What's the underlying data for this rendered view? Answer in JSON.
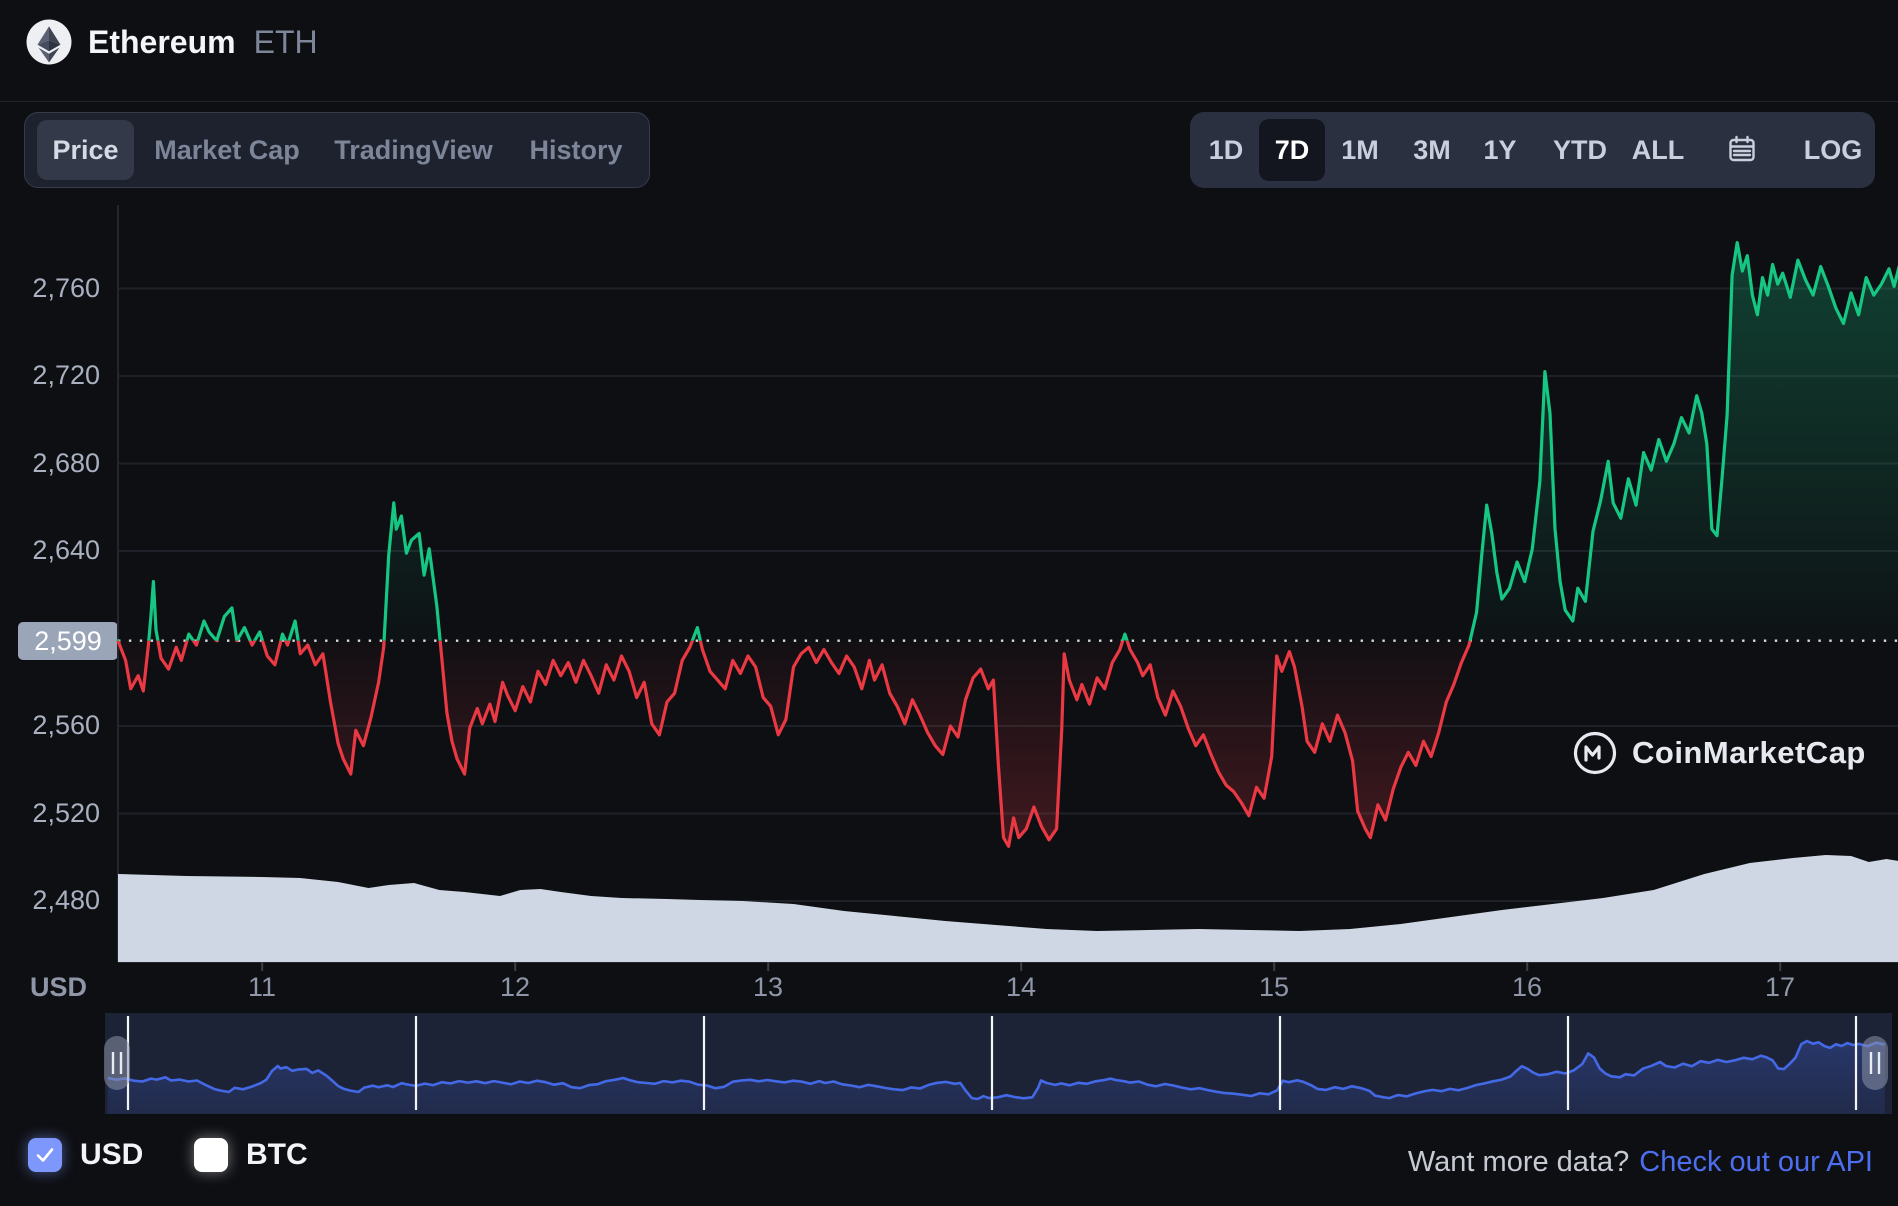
{
  "header": {
    "coin_name": "Ethereum",
    "coin_symbol": "ETH"
  },
  "tabs": {
    "items": [
      {
        "label": "Price",
        "active": true
      },
      {
        "label": "Market Cap",
        "active": false
      },
      {
        "label": "TradingView",
        "active": false
      },
      {
        "label": "History",
        "active": false
      }
    ]
  },
  "range_toolbar": {
    "items": [
      "1D",
      "7D",
      "1M",
      "3M",
      "1Y",
      "YTD",
      "ALL"
    ],
    "active": "7D",
    "calendar_icon": "calendar-icon",
    "log_label": "LOG"
  },
  "watermark": {
    "text": "CoinMarketCap"
  },
  "footer": {
    "usd": {
      "label": "USD",
      "checked": true
    },
    "btc": {
      "label": "BTC",
      "checked": false
    },
    "cta_text": "Want more data?",
    "cta_link": "Check out our API"
  },
  "colors": {
    "up_green": "#16c784",
    "down_red": "#ea3943",
    "link_blue": "#4d6fef",
    "navigator_line": "#4469e6",
    "volume_fill": "#cfd7e4",
    "price_chip_bg": "#9ba5b8",
    "checkbox_blue": "#7e97fc"
  },
  "chart_data": {
    "type": "line",
    "title": "Ethereum (ETH) 7-day price chart in USD",
    "unit": "USD",
    "grid": "horizontal-only",
    "reference_line_style": "dotted",
    "y_axis": {
      "ticks": [
        {
          "value": 2760,
          "label": "2,760"
        },
        {
          "value": 2720,
          "label": "2,720"
        },
        {
          "value": 2680,
          "label": "2,680"
        },
        {
          "value": 2640,
          "label": "2,640"
        },
        {
          "value": 2560,
          "label": "2,560"
        },
        {
          "value": 2520,
          "label": "2,520"
        },
        {
          "value": 2480,
          "label": "2,480"
        }
      ],
      "reference": {
        "value": 2599,
        "label": "2,599"
      },
      "ylim": [
        2470,
        2800
      ]
    },
    "x_axis": {
      "unit": "USD",
      "ticks": [
        {
          "value": 11,
          "label": "11"
        },
        {
          "value": 12,
          "label": "12"
        },
        {
          "value": 13,
          "label": "13"
        },
        {
          "value": 14,
          "label": "14"
        },
        {
          "value": 15,
          "label": "15"
        },
        {
          "value": 16,
          "label": "16"
        },
        {
          "value": 17,
          "label": "17"
        }
      ],
      "xlim": [
        10.43,
        17.47
      ]
    },
    "navigator": {
      "labels": [
        {
          "value": 11,
          "label": "11"
        },
        {
          "value": 12,
          "label": "12"
        },
        {
          "value": 13,
          "label": "13"
        },
        {
          "value": 14,
          "label": "14"
        },
        {
          "value": 15,
          "label": "15"
        },
        {
          "value": 16,
          "label": "16"
        },
        {
          "value": 17,
          "label": "17"
        }
      ]
    },
    "price_series": [
      [
        10.43,
        2599
      ],
      [
        10.46,
        2590
      ],
      [
        10.48,
        2577
      ],
      [
        10.51,
        2583
      ],
      [
        10.53,
        2576
      ],
      [
        10.55,
        2597
      ],
      [
        10.56,
        2610
      ],
      [
        10.57,
        2626
      ],
      [
        10.58,
        2604
      ],
      [
        10.6,
        2591
      ],
      [
        10.63,
        2586
      ],
      [
        10.66,
        2596
      ],
      [
        10.68,
        2590
      ],
      [
        10.71,
        2602
      ],
      [
        10.74,
        2597
      ],
      [
        10.77,
        2608
      ],
      [
        10.79,
        2603
      ],
      [
        10.82,
        2599
      ],
      [
        10.85,
        2610
      ],
      [
        10.88,
        2614
      ],
      [
        10.9,
        2599
      ],
      [
        10.93,
        2605
      ],
      [
        10.96,
        2597
      ],
      [
        10.99,
        2603
      ],
      [
        11.02,
        2592
      ],
      [
        11.05,
        2588
      ],
      [
        11.08,
        2602
      ],
      [
        11.1,
        2597
      ],
      [
        11.13,
        2608
      ],
      [
        11.15,
        2593
      ],
      [
        11.18,
        2597
      ],
      [
        11.21,
        2588
      ],
      [
        11.24,
        2593
      ],
      [
        11.27,
        2571
      ],
      [
        11.3,
        2552
      ],
      [
        11.32,
        2545
      ],
      [
        11.35,
        2538
      ],
      [
        11.37,
        2558
      ],
      [
        11.4,
        2551
      ],
      [
        11.43,
        2564
      ],
      [
        11.46,
        2580
      ],
      [
        11.48,
        2596
      ],
      [
        11.5,
        2638
      ],
      [
        11.52,
        2662
      ],
      [
        11.53,
        2650
      ],
      [
        11.55,
        2656
      ],
      [
        11.57,
        2639
      ],
      [
        11.59,
        2645
      ],
      [
        11.62,
        2648
      ],
      [
        11.64,
        2629
      ],
      [
        11.66,
        2641
      ],
      [
        11.69,
        2615
      ],
      [
        11.71,
        2591
      ],
      [
        11.73,
        2566
      ],
      [
        11.75,
        2553
      ],
      [
        11.77,
        2545
      ],
      [
        11.8,
        2538
      ],
      [
        11.82,
        2559
      ],
      [
        11.85,
        2568
      ],
      [
        11.87,
        2561
      ],
      [
        11.9,
        2570
      ],
      [
        11.92,
        2562
      ],
      [
        11.95,
        2580
      ],
      [
        11.97,
        2574
      ],
      [
        12.0,
        2567
      ],
      [
        12.03,
        2578
      ],
      [
        12.06,
        2571
      ],
      [
        12.09,
        2585
      ],
      [
        12.12,
        2579
      ],
      [
        12.15,
        2590
      ],
      [
        12.18,
        2583
      ],
      [
        12.21,
        2589
      ],
      [
        12.24,
        2580
      ],
      [
        12.27,
        2590
      ],
      [
        12.3,
        2583
      ],
      [
        12.33,
        2575
      ],
      [
        12.36,
        2588
      ],
      [
        12.39,
        2581
      ],
      [
        12.42,
        2592
      ],
      [
        12.45,
        2585
      ],
      [
        12.48,
        2573
      ],
      [
        12.51,
        2580
      ],
      [
        12.54,
        2561
      ],
      [
        12.57,
        2556
      ],
      [
        12.6,
        2571
      ],
      [
        12.63,
        2575
      ],
      [
        12.66,
        2590
      ],
      [
        12.69,
        2596
      ],
      [
        12.72,
        2605
      ],
      [
        12.74,
        2595
      ],
      [
        12.77,
        2585
      ],
      [
        12.8,
        2581
      ],
      [
        12.83,
        2577
      ],
      [
        12.86,
        2590
      ],
      [
        12.89,
        2584
      ],
      [
        12.92,
        2592
      ],
      [
        12.95,
        2587
      ],
      [
        12.98,
        2573
      ],
      [
        13.01,
        2569
      ],
      [
        13.04,
        2556
      ],
      [
        13.07,
        2563
      ],
      [
        13.1,
        2587
      ],
      [
        13.13,
        2593
      ],
      [
        13.16,
        2596
      ],
      [
        13.19,
        2589
      ],
      [
        13.22,
        2595
      ],
      [
        13.25,
        2589
      ],
      [
        13.28,
        2584
      ],
      [
        13.31,
        2592
      ],
      [
        13.34,
        2587
      ],
      [
        13.37,
        2577
      ],
      [
        13.4,
        2590
      ],
      [
        13.42,
        2581
      ],
      [
        13.45,
        2588
      ],
      [
        13.48,
        2575
      ],
      [
        13.51,
        2569
      ],
      [
        13.54,
        2561
      ],
      [
        13.57,
        2572
      ],
      [
        13.6,
        2565
      ],
      [
        13.63,
        2557
      ],
      [
        13.66,
        2551
      ],
      [
        13.69,
        2547
      ],
      [
        13.72,
        2560
      ],
      [
        13.75,
        2555
      ],
      [
        13.78,
        2572
      ],
      [
        13.81,
        2582
      ],
      [
        13.84,
        2586
      ],
      [
        13.87,
        2577
      ],
      [
        13.89,
        2581
      ],
      [
        13.91,
        2542
      ],
      [
        13.93,
        2509
      ],
      [
        13.95,
        2505
      ],
      [
        13.97,
        2518
      ],
      [
        13.99,
        2509
      ],
      [
        14.02,
        2513
      ],
      [
        14.05,
        2523
      ],
      [
        14.08,
        2514
      ],
      [
        14.11,
        2508
      ],
      [
        14.14,
        2513
      ],
      [
        14.16,
        2558
      ],
      [
        14.17,
        2593
      ],
      [
        14.19,
        2581
      ],
      [
        14.22,
        2572
      ],
      [
        14.24,
        2579
      ],
      [
        14.27,
        2570
      ],
      [
        14.3,
        2582
      ],
      [
        14.33,
        2577
      ],
      [
        14.36,
        2589
      ],
      [
        14.39,
        2595
      ],
      [
        14.41,
        2602
      ],
      [
        14.43,
        2595
      ],
      [
        14.46,
        2589
      ],
      [
        14.48,
        2583
      ],
      [
        14.51,
        2588
      ],
      [
        14.54,
        2573
      ],
      [
        14.57,
        2565
      ],
      [
        14.6,
        2576
      ],
      [
        14.63,
        2569
      ],
      [
        14.66,
        2559
      ],
      [
        14.69,
        2551
      ],
      [
        14.72,
        2556
      ],
      [
        14.75,
        2547
      ],
      [
        14.78,
        2539
      ],
      [
        14.81,
        2533
      ],
      [
        14.84,
        2530
      ],
      [
        14.87,
        2525
      ],
      [
        14.9,
        2519
      ],
      [
        14.93,
        2532
      ],
      [
        14.96,
        2527
      ],
      [
        14.99,
        2546
      ],
      [
        15.01,
        2592
      ],
      [
        15.03,
        2585
      ],
      [
        15.06,
        2594
      ],
      [
        15.08,
        2587
      ],
      [
        15.11,
        2569
      ],
      [
        15.13,
        2553
      ],
      [
        15.16,
        2548
      ],
      [
        15.19,
        2561
      ],
      [
        15.22,
        2553
      ],
      [
        15.25,
        2565
      ],
      [
        15.28,
        2557
      ],
      [
        15.31,
        2544
      ],
      [
        15.33,
        2521
      ],
      [
        15.36,
        2513
      ],
      [
        15.38,
        2509
      ],
      [
        15.41,
        2524
      ],
      [
        15.44,
        2517
      ],
      [
        15.47,
        2531
      ],
      [
        15.5,
        2541
      ],
      [
        15.53,
        2548
      ],
      [
        15.56,
        2542
      ],
      [
        15.59,
        2553
      ],
      [
        15.62,
        2546
      ],
      [
        15.65,
        2557
      ],
      [
        15.68,
        2571
      ],
      [
        15.71,
        2579
      ],
      [
        15.74,
        2589
      ],
      [
        15.77,
        2597
      ],
      [
        15.8,
        2612
      ],
      [
        15.82,
        2638
      ],
      [
        15.84,
        2661
      ],
      [
        15.86,
        2648
      ],
      [
        15.88,
        2630
      ],
      [
        15.9,
        2618
      ],
      [
        15.93,
        2623
      ],
      [
        15.96,
        2635
      ],
      [
        15.99,
        2626
      ],
      [
        16.02,
        2641
      ],
      [
        16.05,
        2672
      ],
      [
        16.07,
        2722
      ],
      [
        16.09,
        2703
      ],
      [
        16.11,
        2650
      ],
      [
        16.13,
        2626
      ],
      [
        16.15,
        2613
      ],
      [
        16.18,
        2608
      ],
      [
        16.2,
        2623
      ],
      [
        16.23,
        2617
      ],
      [
        16.26,
        2649
      ],
      [
        16.29,
        2663
      ],
      [
        16.32,
        2681
      ],
      [
        16.34,
        2662
      ],
      [
        16.37,
        2655
      ],
      [
        16.4,
        2673
      ],
      [
        16.43,
        2661
      ],
      [
        16.46,
        2685
      ],
      [
        16.49,
        2677
      ],
      [
        16.52,
        2691
      ],
      [
        16.55,
        2681
      ],
      [
        16.58,
        2689
      ],
      [
        16.61,
        2701
      ],
      [
        16.64,
        2694
      ],
      [
        16.67,
        2711
      ],
      [
        16.69,
        2703
      ],
      [
        16.71,
        2689
      ],
      [
        16.73,
        2650
      ],
      [
        16.75,
        2647
      ],
      [
        16.77,
        2673
      ],
      [
        16.79,
        2702
      ],
      [
        16.81,
        2766
      ],
      [
        16.83,
        2781
      ],
      [
        16.85,
        2768
      ],
      [
        16.87,
        2775
      ],
      [
        16.89,
        2757
      ],
      [
        16.91,
        2748
      ],
      [
        16.93,
        2765
      ],
      [
        16.95,
        2757
      ],
      [
        16.97,
        2771
      ],
      [
        16.99,
        2762
      ],
      [
        17.01,
        2767
      ],
      [
        17.04,
        2756
      ],
      [
        17.07,
        2773
      ],
      [
        17.1,
        2764
      ],
      [
        17.13,
        2757
      ],
      [
        17.16,
        2770
      ],
      [
        17.19,
        2761
      ],
      [
        17.22,
        2751
      ],
      [
        17.25,
        2744
      ],
      [
        17.28,
        2758
      ],
      [
        17.31,
        2748
      ],
      [
        17.34,
        2765
      ],
      [
        17.37,
        2757
      ],
      [
        17.4,
        2762
      ],
      [
        17.43,
        2769
      ],
      [
        17.45,
        2761
      ],
      [
        17.47,
        2770
      ]
    ],
    "volume_area": {
      "unit": "relative height (px at 1898x1206)",
      "points": [
        [
          10.43,
          88
        ],
        [
          10.7,
          86
        ],
        [
          11.0,
          85
        ],
        [
          11.15,
          84
        ],
        [
          11.3,
          80
        ],
        [
          11.42,
          74
        ],
        [
          11.5,
          77
        ],
        [
          11.6,
          79
        ],
        [
          11.7,
          72
        ],
        [
          11.8,
          70
        ],
        [
          11.94,
          66
        ],
        [
          12.02,
          72
        ],
        [
          12.1,
          73
        ],
        [
          12.18,
          70
        ],
        [
          12.3,
          66
        ],
        [
          12.42,
          64
        ],
        [
          12.6,
          63
        ],
        [
          12.73,
          62
        ],
        [
          12.9,
          61
        ],
        [
          13.1,
          58
        ],
        [
          13.3,
          51
        ],
        [
          13.5,
          46
        ],
        [
          13.7,
          41
        ],
        [
          13.9,
          37
        ],
        [
          14.1,
          33
        ],
        [
          14.3,
          31
        ],
        [
          14.5,
          32
        ],
        [
          14.7,
          33
        ],
        [
          14.9,
          32
        ],
        [
          15.1,
          31
        ],
        [
          15.3,
          33
        ],
        [
          15.5,
          38
        ],
        [
          15.7,
          45
        ],
        [
          15.9,
          52
        ],
        [
          16.1,
          58
        ],
        [
          16.3,
          64
        ],
        [
          16.5,
          72
        ],
        [
          16.7,
          88
        ],
        [
          16.88,
          99
        ],
        [
          17.05,
          104
        ],
        [
          17.18,
          107
        ],
        [
          17.28,
          106
        ],
        [
          17.35,
          100
        ],
        [
          17.42,
          103
        ],
        [
          17.47,
          101
        ]
      ]
    }
  }
}
